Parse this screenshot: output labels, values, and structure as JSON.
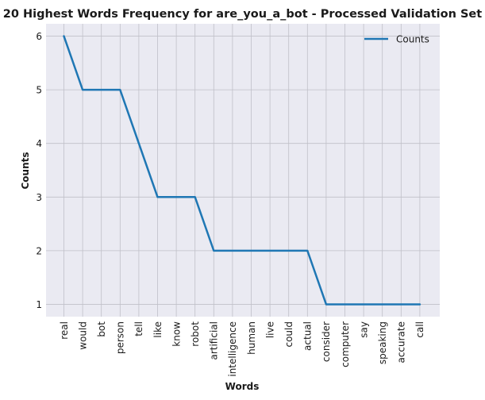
{
  "chart_data": {
    "type": "line",
    "title": "20 Highest Words Frequency for are_you_a_bot - Processed Validation Set",
    "xlabel": "Words",
    "ylabel": "Counts",
    "categories": [
      "real",
      "would",
      "bot",
      "person",
      "tell",
      "like",
      "know",
      "robot",
      "artificial",
      "intelligence",
      "human",
      "live",
      "could",
      "actual",
      "consider",
      "computer",
      "say",
      "speaking",
      "accurate",
      "call"
    ],
    "series": [
      {
        "name": "Counts",
        "values": [
          6,
          5,
          5,
          5,
          4,
          3,
          3,
          3,
          2,
          2,
          2,
          2,
          2,
          2,
          1,
          1,
          1,
          1,
          1,
          1
        ]
      }
    ],
    "yticks": [
      1,
      2,
      3,
      4,
      5,
      6
    ],
    "ylim": [
      0.77,
      6.23
    ],
    "grid": true,
    "legend_position": "top-right",
    "colors": {
      "line": "#1f77b4",
      "plot_background": "#eaeaf2",
      "grid": "#c0c0c8"
    }
  }
}
